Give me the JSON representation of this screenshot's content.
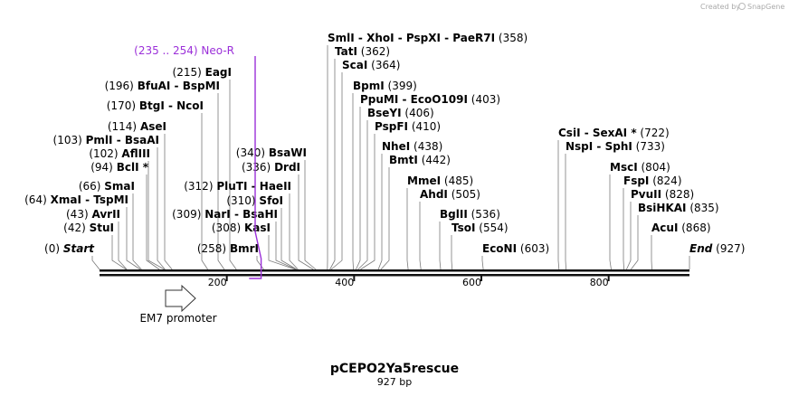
{
  "branding": {
    "created_by": "Created by",
    "app": "SnapGene"
  },
  "plasmid": {
    "name": "pCEPO2Ya5rescue",
    "length_label": "927 bp"
  },
  "feature": {
    "range": "(235 .. 254)",
    "name": "Neo-R",
    "color": "#9b30d9"
  },
  "promoter": {
    "name": "EM7 promoter"
  },
  "axis": {
    "ticks": [
      "200",
      "400",
      "600",
      "800"
    ]
  },
  "sites": [
    {
      "pos": "(0)",
      "names": [
        "Start"
      ],
      "end": true
    },
    {
      "pos": "(42)",
      "names": [
        "StuI"
      ]
    },
    {
      "pos": "(43)",
      "names": [
        "AvrII"
      ]
    },
    {
      "pos": "(64)",
      "names": [
        "XmaI",
        "TspMI"
      ]
    },
    {
      "pos": "(66)",
      "names": [
        "SmaI"
      ]
    },
    {
      "pos": "(94)",
      "names": [
        "BclI *"
      ]
    },
    {
      "pos": "(102)",
      "names": [
        "AflIII"
      ]
    },
    {
      "pos": "(103)",
      "names": [
        "PmlI",
        "BsaAI"
      ]
    },
    {
      "pos": "(114)",
      "names": [
        "AseI"
      ]
    },
    {
      "pos": "(170)",
      "names": [
        "BtgI",
        "NcoI"
      ]
    },
    {
      "pos": "(196)",
      "names": [
        "BfuAI",
        "BspMI"
      ]
    },
    {
      "pos": "(215)",
      "names": [
        "EagI"
      ]
    },
    {
      "pos": "(309)",
      "names": [
        "NarI",
        "BsaHI"
      ]
    },
    {
      "pos": "(312)",
      "names": [
        "PluTI",
        "HaeII"
      ]
    },
    {
      "pos": "(258)",
      "names": [
        "BmrI"
      ]
    },
    {
      "pos": "(308)",
      "names": [
        "KasI"
      ]
    },
    {
      "pos": "(310)",
      "names": [
        "SfoI"
      ]
    },
    {
      "pos": "(336)",
      "names": [
        "DrdI"
      ]
    },
    {
      "pos": "(340)",
      "names": [
        "BsaWI"
      ]
    },
    {
      "pos": "(358)",
      "names": [
        "SmlI",
        "XhoI",
        "PspXI",
        "PaeR7I"
      ]
    },
    {
      "pos": "(362)",
      "names": [
        "TatI"
      ]
    },
    {
      "pos": "(364)",
      "names": [
        "ScaI"
      ]
    },
    {
      "pos": "(399)",
      "names": [
        "BpmI"
      ]
    },
    {
      "pos": "(403)",
      "names": [
        "PpuMI",
        "EcoO109I"
      ]
    },
    {
      "pos": "(406)",
      "names": [
        "BseYI"
      ]
    },
    {
      "pos": "(410)",
      "names": [
        "PspFI"
      ]
    },
    {
      "pos": "(438)",
      "names": [
        "NheI"
      ]
    },
    {
      "pos": "(442)",
      "names": [
        "BmtI"
      ]
    },
    {
      "pos": "(485)",
      "names": [
        "MmeI"
      ]
    },
    {
      "pos": "(505)",
      "names": [
        "AhdI"
      ]
    },
    {
      "pos": "(536)",
      "names": [
        "BglII"
      ]
    },
    {
      "pos": "(554)",
      "names": [
        "TsoI"
      ]
    },
    {
      "pos": "(603)",
      "names": [
        "EcoNI"
      ]
    },
    {
      "pos": "(722)",
      "names": [
        "CsiI",
        "SexAI *"
      ]
    },
    {
      "pos": "(733)",
      "names": [
        "NspI",
        "SphI"
      ]
    },
    {
      "pos": "(804)",
      "names": [
        "MscI"
      ]
    },
    {
      "pos": "(824)",
      "names": [
        "FspI"
      ]
    },
    {
      "pos": "(828)",
      "names": [
        "PvuII"
      ]
    },
    {
      "pos": "(835)",
      "names": [
        "BsiHKAI"
      ]
    },
    {
      "pos": "(868)",
      "names": [
        "AcuI"
      ]
    },
    {
      "pos": "(927)",
      "names": [
        "End"
      ],
      "end": true
    }
  ]
}
